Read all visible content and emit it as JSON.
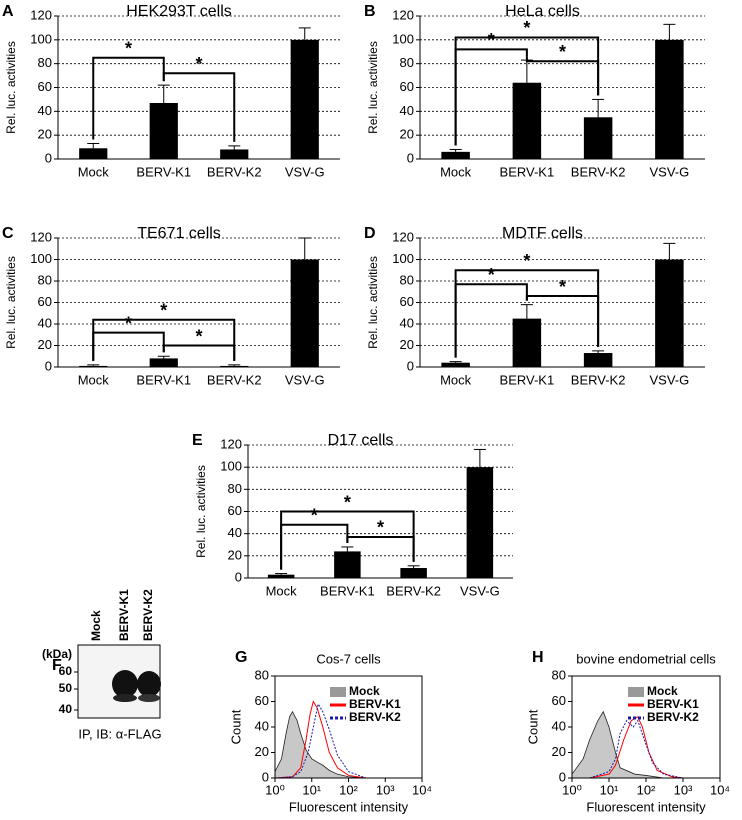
{
  "chart_data": [
    {
      "type": "bar",
      "label": "A",
      "title": "HEK293T cells",
      "ylabel": "Rel. luc. activities",
      "categories": [
        "Mock",
        "BERV-K1",
        "BERV-K2",
        "VSV-G"
      ],
      "values": [
        9,
        47,
        8,
        100
      ],
      "errors": [
        4,
        15,
        3,
        10
      ],
      "color": "#000000",
      "ylim": [
        0,
        120
      ],
      "yticks": [
        0,
        20,
        40,
        60,
        80,
        100,
        120
      ],
      "grid": true,
      "significance": [
        {
          "from": 0,
          "to": 1,
          "level": 85,
          "label": "*"
        },
        {
          "from": 1,
          "to": 2,
          "level": 72,
          "label": "*"
        }
      ]
    },
    {
      "type": "bar",
      "label": "B",
      "title": "HeLa cells",
      "ylabel": "Rel. luc. activities",
      "categories": [
        "Mock",
        "BERV-K1",
        "BERV-K2",
        "VSV-G"
      ],
      "values": [
        6,
        64,
        35,
        100
      ],
      "errors": [
        2,
        19,
        15,
        13
      ],
      "color": "#000000",
      "ylim": [
        0,
        120
      ],
      "yticks": [
        0,
        20,
        40,
        60,
        80,
        100,
        120
      ],
      "grid": true,
      "significance": [
        {
          "from": 0,
          "to": 2,
          "level": 102,
          "label": "*"
        },
        {
          "from": 0,
          "to": 1,
          "level": 92,
          "label": "*"
        },
        {
          "from": 1,
          "to": 2,
          "level": 82,
          "label": "*"
        }
      ]
    },
    {
      "type": "bar",
      "label": "C",
      "title": "TE671 cells",
      "ylabel": "Rel. luc. activities",
      "categories": [
        "Mock",
        "BERV-K1",
        "BERV-K2",
        "VSV-G"
      ],
      "values": [
        1,
        8,
        1,
        100
      ],
      "errors": [
        1,
        2,
        1,
        20
      ],
      "color": "#000000",
      "ylim": [
        0,
        120
      ],
      "yticks": [
        0,
        20,
        40,
        60,
        80,
        100,
        120
      ],
      "grid": true,
      "significance": [
        {
          "from": 0,
          "to": 2,
          "level": 44,
          "label": "*"
        },
        {
          "from": 0,
          "to": 1,
          "level": 32,
          "label": "*"
        },
        {
          "from": 1,
          "to": 2,
          "level": 20,
          "label": "*"
        }
      ]
    },
    {
      "type": "bar",
      "label": "D",
      "title": "MDTF cells",
      "ylabel": "Rel. luc. activities",
      "categories": [
        "Mock",
        "BERV-K1",
        "BERV-K2",
        "VSV-G"
      ],
      "values": [
        4,
        45,
        13,
        100
      ],
      "errors": [
        1,
        13,
        2,
        15
      ],
      "color": "#000000",
      "ylim": [
        0,
        120
      ],
      "yticks": [
        0,
        20,
        40,
        60,
        80,
        100,
        120
      ],
      "grid": true,
      "significance": [
        {
          "from": 0,
          "to": 2,
          "level": 90,
          "label": "*"
        },
        {
          "from": 0,
          "to": 1,
          "level": 77,
          "label": "*"
        },
        {
          "from": 1,
          "to": 2,
          "level": 66,
          "label": "*"
        }
      ]
    },
    {
      "type": "bar",
      "label": "E",
      "title": "D17 cells",
      "ylabel": "Rel. luc. activities",
      "categories": [
        "Mock",
        "BERV-K1",
        "BERV-K2",
        "VSV-G"
      ],
      "values": [
        3,
        24,
        9,
        100
      ],
      "errors": [
        1,
        4,
        2,
        16
      ],
      "color": "#000000",
      "ylim": [
        0,
        120
      ],
      "yticks": [
        0,
        20,
        40,
        60,
        80,
        100,
        120
      ],
      "grid": true,
      "significance": [
        {
          "from": 0,
          "to": 2,
          "level": 60,
          "label": "*"
        },
        {
          "from": 0,
          "to": 1,
          "level": 48,
          "label": "*"
        },
        {
          "from": 1,
          "to": 2,
          "level": 37,
          "label": "*"
        }
      ]
    },
    {
      "type": "blot",
      "label": "F",
      "lanes": [
        "Mock",
        "BERV-K1",
        "BERV-K2"
      ],
      "unit_label": "(kDa)",
      "markers": [
        60,
        50,
        40
      ],
      "caption": "IP, IB: α-FLAG"
    },
    {
      "type": "line",
      "label": "G",
      "title": "Cos-7 cells",
      "xlabel": "Fluorescent intensity",
      "ylabel": "Count",
      "log_x": true,
      "xlim": [
        1,
        10000
      ],
      "xticks": [
        {
          "value": 1,
          "label": "10⁰"
        },
        {
          "value": 10,
          "label": "10¹"
        },
        {
          "value": 100,
          "label": "10²"
        },
        {
          "value": 1000,
          "label": "10³"
        },
        {
          "value": 10000,
          "label": "10⁴"
        }
      ],
      "ylim": [
        0,
        80
      ],
      "yticks": [
        0,
        20,
        40,
        60,
        80
      ],
      "legend": "upper right",
      "series": [
        {
          "name": "Mock",
          "color": "#999999",
          "fill": true,
          "x": [
            1,
            1.5,
            2,
            2.5,
            3,
            4,
            5,
            7,
            10,
            15,
            20,
            30,
            50,
            100,
            300
          ],
          "values": [
            5,
            15,
            35,
            48,
            52,
            45,
            35,
            22,
            15,
            12,
            10,
            6,
            3,
            1,
            0
          ]
        },
        {
          "name": "BERV-K1",
          "color": "#ff0000",
          "x": [
            1,
            3,
            5,
            7,
            9,
            11,
            14,
            20,
            30,
            50,
            100,
            300
          ],
          "values": [
            0,
            1,
            8,
            30,
            50,
            60,
            55,
            40,
            20,
            8,
            2,
            0
          ]
        },
        {
          "name": "BERV-K2",
          "color": "#1a1aa6",
          "dashed": true,
          "x": [
            1,
            3,
            5,
            8,
            12,
            15,
            20,
            30,
            50,
            100,
            300
          ],
          "values": [
            0,
            1,
            5,
            20,
            45,
            58,
            52,
            38,
            18,
            5,
            0
          ]
        }
      ]
    },
    {
      "type": "line",
      "label": "H",
      "title": "bovine endometrial cells",
      "xlabel": "Fluorescent intensity",
      "ylabel": "Count",
      "log_x": true,
      "xlim": [
        1,
        10000
      ],
      "xticks": [
        {
          "value": 1,
          "label": "10⁰"
        },
        {
          "value": 10,
          "label": "10¹"
        },
        {
          "value": 100,
          "label": "10²"
        },
        {
          "value": 1000,
          "label": "10³"
        },
        {
          "value": 10000,
          "label": "10⁴"
        }
      ],
      "ylim": [
        0,
        80
      ],
      "yticks": [
        0,
        20,
        40,
        60,
        80
      ],
      "legend": "upper right",
      "series": [
        {
          "name": "Mock",
          "color": "#999999",
          "fill": true,
          "x": [
            1,
            2,
            3,
            5,
            7,
            10,
            15,
            20,
            50,
            100,
            300
          ],
          "values": [
            3,
            15,
            30,
            45,
            52,
            40,
            20,
            8,
            3,
            2,
            0
          ]
        },
        {
          "name": "BERV-K1",
          "color": "#ff0000",
          "x": [
            3,
            10,
            15,
            25,
            40,
            60,
            80,
            120,
            200,
            500,
            1000
          ],
          "values": [
            0,
            3,
            10,
            30,
            45,
            48,
            40,
            20,
            6,
            1,
            0
          ]
        },
        {
          "name": "BERV-K2",
          "color": "#1a1aa6",
          "dashed": true,
          "x": [
            3,
            10,
            15,
            20,
            30,
            45,
            60,
            90,
            150,
            300,
            1000
          ],
          "values": [
            0,
            5,
            15,
            35,
            45,
            40,
            45,
            30,
            12,
            3,
            0
          ]
        }
      ]
    }
  ]
}
